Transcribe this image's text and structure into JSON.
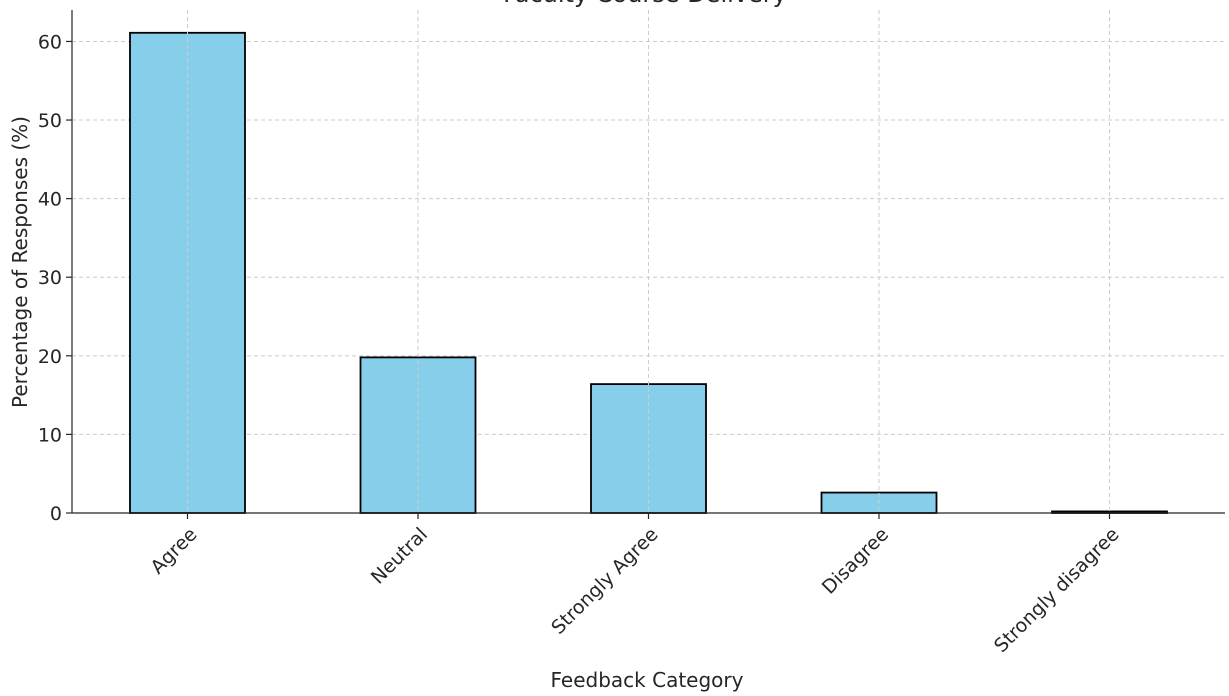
{
  "chart_data": {
    "type": "bar",
    "title": "Faculty Course Delivery",
    "xlabel": "Feedback Category",
    "ylabel": "Percentage of Responses (%)",
    "categories": [
      "Agree",
      "Neutral",
      "Strongly Agree",
      "Disagree",
      "Strongly disagree"
    ],
    "values": [
      61.1,
      19.8,
      16.4,
      2.6,
      0.2
    ],
    "ylim": [
      0,
      64
    ],
    "yticks": [
      "0",
      "10",
      "20",
      "30",
      "40",
      "50",
      "60"
    ],
    "grid": true,
    "colors": {
      "bar_fill": "#87ceeb",
      "bar_edge": "#000000",
      "grid": "#cccccc"
    }
  }
}
